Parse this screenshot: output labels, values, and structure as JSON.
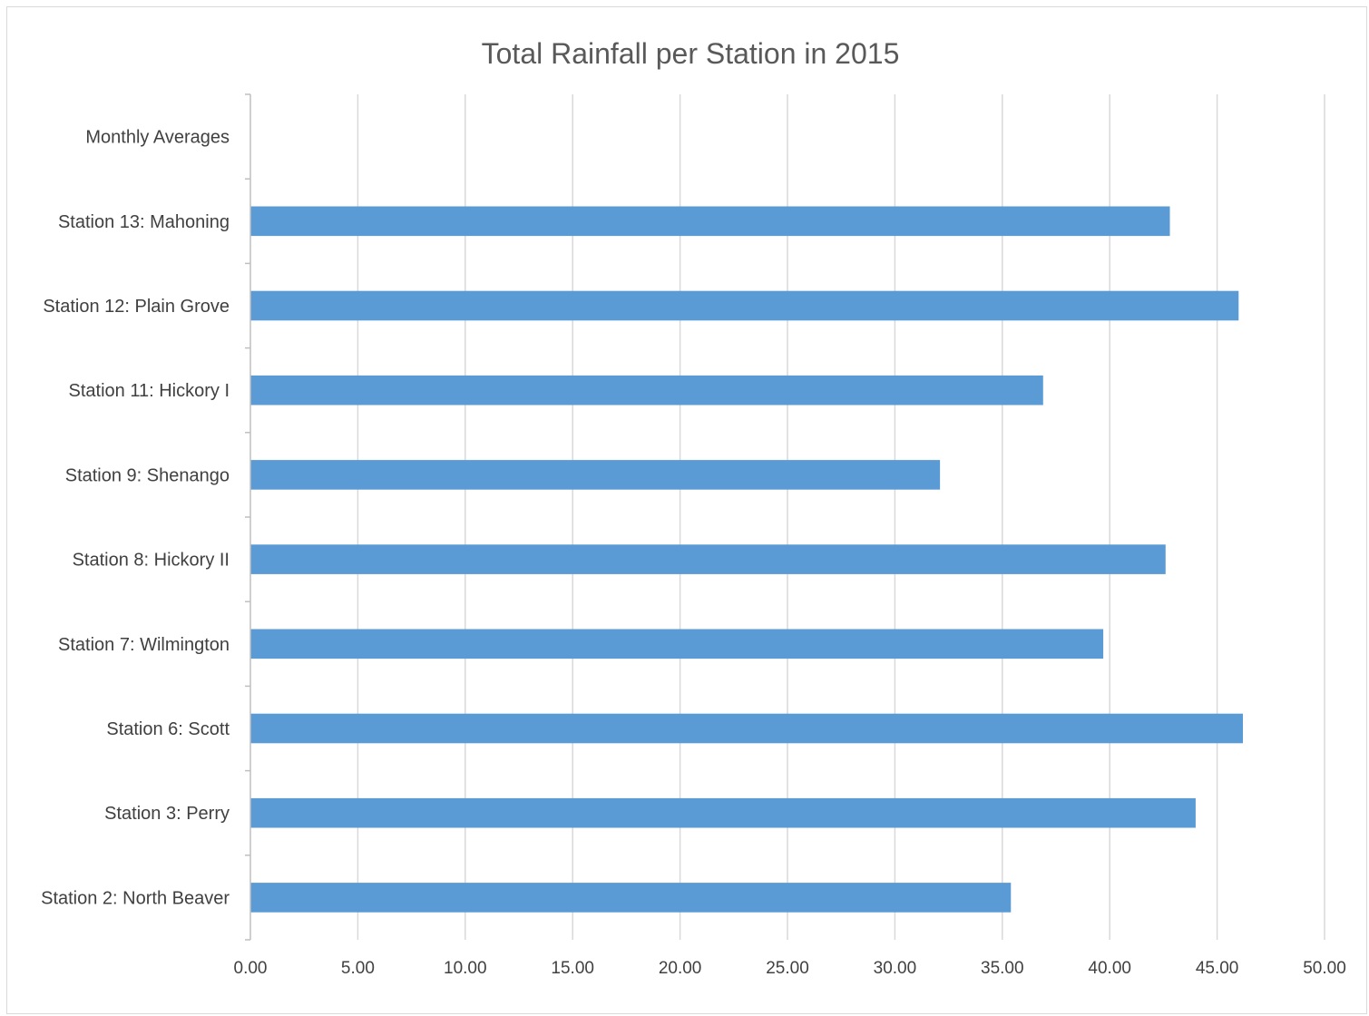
{
  "chart_data": {
    "type": "bar",
    "orientation": "horizontal",
    "title": "Total Rainfall per Station in 2015",
    "xlabel": "",
    "ylabel": "",
    "categories": [
      "Station 2: North Beaver",
      "Station 3: Perry",
      "Station 6: Scott",
      "Station 7: Wilmington",
      "Station 8: Hickory II",
      "Station 9: Shenango",
      "Station 11: Hickory I",
      "Station 12: Plain Grove",
      "Station 13: Mahoning",
      "Monthly Averages"
    ],
    "values": [
      35.4,
      44.0,
      46.2,
      39.7,
      42.6,
      32.1,
      36.9,
      46.0,
      42.8,
      null
    ],
    "xlim": [
      0,
      50
    ],
    "x_ticks": [
      "0.00",
      "5.00",
      "10.00",
      "15.00",
      "20.00",
      "25.00",
      "30.00",
      "35.00",
      "40.00",
      "45.00",
      "50.00"
    ],
    "grid": "vertical",
    "legend": "none",
    "bar_color": "#5b9bd5",
    "grid_color": "#d9d9d9",
    "axis_color": "#bfbfbf"
  }
}
